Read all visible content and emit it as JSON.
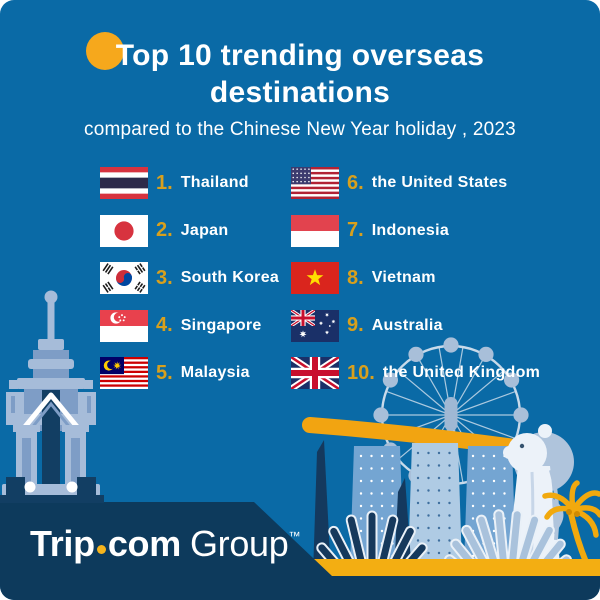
{
  "header": {
    "title_line1": "Top 10 trending overseas",
    "title_line2": "destinations",
    "subtitle": "compared to the Chinese New Year holiday , 2023"
  },
  "destinations": [
    {
      "rank": "1.",
      "name": "Thailand",
      "flag": "th"
    },
    {
      "rank": "2.",
      "name": "Japan",
      "flag": "jp"
    },
    {
      "rank": "3.",
      "name": "South Korea",
      "flag": "kr"
    },
    {
      "rank": "4.",
      "name": "Singapore",
      "flag": "sg"
    },
    {
      "rank": "5.",
      "name": "Malaysia",
      "flag": "my"
    },
    {
      "rank": "6.",
      "name": "the United States",
      "flag": "us"
    },
    {
      "rank": "7.",
      "name": "Indonesia",
      "flag": "id"
    },
    {
      "rank": "8.",
      "name": "Vietnam",
      "flag": "vn"
    },
    {
      "rank": "9.",
      "name": "Australia",
      "flag": "au"
    },
    {
      "rank": "10.",
      "name": "the United Kingdom",
      "flag": "gb"
    }
  ],
  "footer": {
    "logo_trip": "Trip",
    "logo_com": "com",
    "logo_group": "Group",
    "logo_tm": "™"
  },
  "colors": {
    "background": "#0A6AA6",
    "footer_band": "#0D3A5C",
    "accent_yellow": "#F6A81C",
    "rank_gold": "#D8A01D",
    "illustration_light_blue": "#A6BCD9",
    "illustration_white": "#ECF2F9"
  },
  "chart_data": {
    "type": "table",
    "title": "Top 10 trending overseas destinations",
    "subtitle": "compared to the Chinese New Year holiday , 2023",
    "columns": [
      "rank",
      "destination"
    ],
    "rows": [
      [
        1,
        "Thailand"
      ],
      [
        2,
        "Japan"
      ],
      [
        3,
        "South Korea"
      ],
      [
        4,
        "Singapore"
      ],
      [
        5,
        "Malaysia"
      ],
      [
        6,
        "the United States"
      ],
      [
        7,
        "Indonesia"
      ],
      [
        8,
        "Vietnam"
      ],
      [
        9,
        "Australia"
      ],
      [
        10,
        "the United Kingdom"
      ]
    ]
  }
}
